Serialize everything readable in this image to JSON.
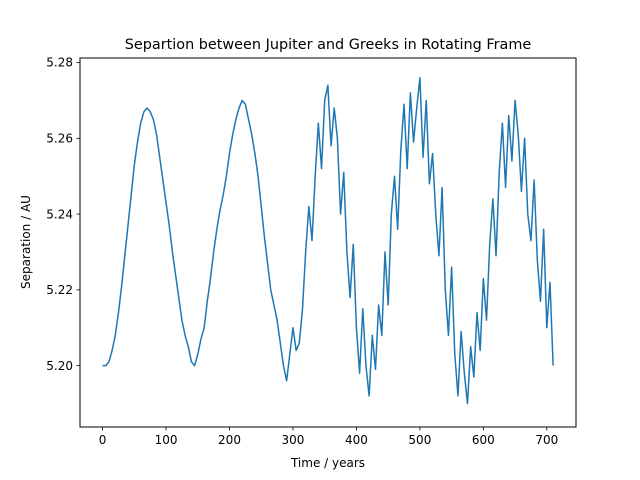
{
  "chart_data": {
    "type": "line",
    "title": "Separtion between Jupiter and Greeks in Rotating Frame",
    "xlabel": "Time / years",
    "ylabel": "Separation / AU",
    "xlim": [
      -35.6,
      746.0
    ],
    "ylim": [
      5.1838,
      5.2812
    ],
    "xticks": [
      0,
      100,
      200,
      300,
      400,
      500,
      600,
      700
    ],
    "yticks": [
      5.2,
      5.22,
      5.24,
      5.26,
      5.28
    ],
    "xtick_labels": [
      "0",
      "100",
      "200",
      "300",
      "400",
      "500",
      "600",
      "700"
    ],
    "ytick_labels": [
      "5.20",
      "5.22",
      "5.24",
      "5.26",
      "5.28"
    ],
    "grid": false,
    "legend": "none",
    "series_color": "#1f77b4",
    "series": [
      {
        "x": [
          0,
          5,
          10,
          15,
          20,
          25,
          30,
          35,
          40,
          45,
          50,
          55,
          60,
          65,
          70,
          75,
          80,
          85,
          90,
          95,
          100,
          105,
          110,
          115,
          120,
          125,
          130,
          135,
          140,
          145,
          150,
          155,
          160,
          165,
          170,
          175,
          180,
          185,
          190,
          195,
          200,
          205,
          210,
          215,
          220,
          225,
          230,
          235,
          240,
          245,
          250,
          255,
          260,
          265,
          270,
          275,
          280,
          285,
          290,
          295,
          300,
          305,
          310,
          315,
          320,
          325,
          330,
          335,
          340,
          345,
          350,
          355,
          360,
          365,
          370,
          375,
          380,
          385,
          390,
          395,
          400,
          405,
          410,
          415,
          420,
          425,
          430,
          435,
          440,
          445,
          450,
          455,
          460,
          465,
          470,
          475,
          480,
          485,
          490,
          495,
          500,
          505,
          510,
          515,
          520,
          525,
          530,
          535,
          540,
          545,
          550,
          555,
          560,
          565,
          570,
          575,
          580,
          585,
          590,
          595,
          600,
          605,
          610,
          615,
          620,
          625,
          630,
          635,
          640,
          645,
          650,
          655,
          660,
          665,
          670,
          675,
          680,
          685,
          690,
          695,
          700,
          705,
          710
        ],
        "y": [
          5.2,
          5.2,
          5.201,
          5.204,
          5.208,
          5.214,
          5.221,
          5.229,
          5.237,
          5.245,
          5.253,
          5.259,
          5.264,
          5.267,
          5.268,
          5.267,
          5.265,
          5.261,
          5.255,
          5.249,
          5.243,
          5.237,
          5.23,
          5.224,
          5.218,
          5.212,
          5.208,
          5.205,
          5.201,
          5.2,
          5.203,
          5.207,
          5.21,
          5.217,
          5.223,
          5.23,
          5.236,
          5.241,
          5.245,
          5.25,
          5.256,
          5.261,
          5.265,
          5.268,
          5.27,
          5.269,
          5.265,
          5.261,
          5.256,
          5.25,
          5.242,
          5.234,
          5.227,
          5.22,
          5.216,
          5.212,
          5.206,
          5.2,
          5.196,
          5.203,
          5.21,
          5.204,
          5.206,
          5.215,
          5.23,
          5.242,
          5.233,
          5.25,
          5.264,
          5.252,
          5.27,
          5.274,
          5.258,
          5.268,
          5.26,
          5.24,
          5.251,
          5.23,
          5.218,
          5.232,
          5.21,
          5.198,
          5.215,
          5.2,
          5.192,
          5.208,
          5.199,
          5.216,
          5.208,
          5.23,
          5.216,
          5.24,
          5.25,
          5.236,
          5.257,
          5.269,
          5.252,
          5.272,
          5.259,
          5.268,
          5.276,
          5.255,
          5.27,
          5.248,
          5.256,
          5.24,
          5.229,
          5.247,
          5.22,
          5.208,
          5.226,
          5.203,
          5.192,
          5.209,
          5.198,
          5.19,
          5.205,
          5.197,
          5.214,
          5.204,
          5.223,
          5.212,
          5.232,
          5.244,
          5.229,
          5.251,
          5.264,
          5.247,
          5.266,
          5.254,
          5.27,
          5.261,
          5.246,
          5.26,
          5.24,
          5.233,
          5.249,
          5.228,
          5.217,
          5.236,
          5.21,
          5.222,
          5.2
        ]
      }
    ]
  }
}
